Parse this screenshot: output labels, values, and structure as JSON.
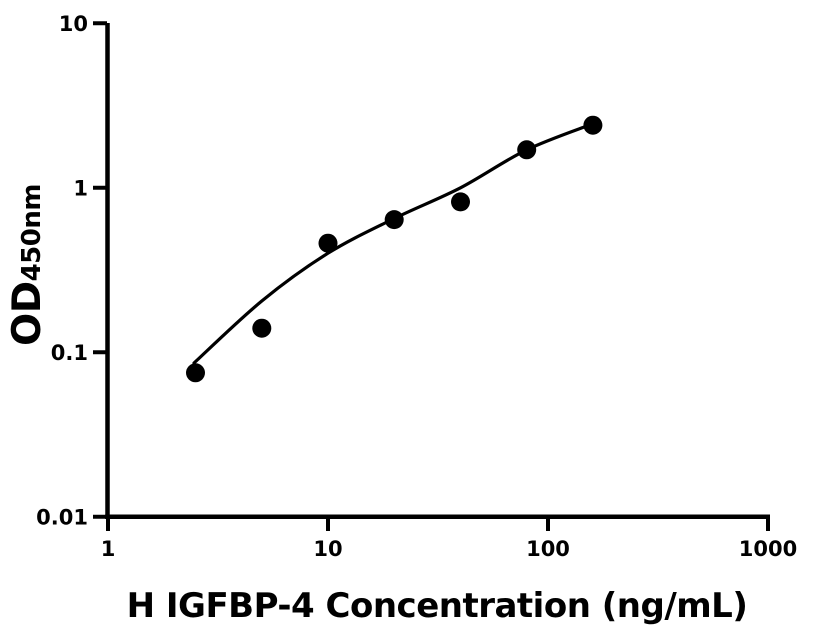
{
  "chart": {
    "background": "#ffffff",
    "ink_color": "#000000"
  },
  "chart_data": {
    "type": "scatter",
    "title": "",
    "xlabel": "H IGFBP-4 Concentration (ng/mL)",
    "ylabel": "OD",
    "ylabel_subscript": "450nm",
    "x_scale": "log",
    "y_scale": "log",
    "xlim": [
      1,
      1000
    ],
    "ylim": [
      0.01,
      10
    ],
    "grid": false,
    "legend": "none",
    "x_ticks": [
      "1",
      "10",
      "100",
      "1000"
    ],
    "y_ticks": [
      "0.01",
      "0.1",
      "1",
      "10"
    ],
    "series": [
      {
        "name": "standard-points",
        "type": "scatter",
        "marker": "filled-circle",
        "color": "#000000",
        "x": [
          2.5,
          5,
          10,
          20,
          40,
          80,
          160
        ],
        "y": [
          0.075,
          0.14,
          0.46,
          0.64,
          0.82,
          1.7,
          2.4
        ]
      },
      {
        "name": "fitted-curve",
        "type": "line",
        "color": "#000000",
        "x": [
          2.46,
          5,
          10,
          20,
          40,
          80,
          160
        ],
        "y": [
          0.086,
          0.205,
          0.4,
          0.65,
          1.0,
          1.7,
          2.45
        ]
      }
    ]
  }
}
